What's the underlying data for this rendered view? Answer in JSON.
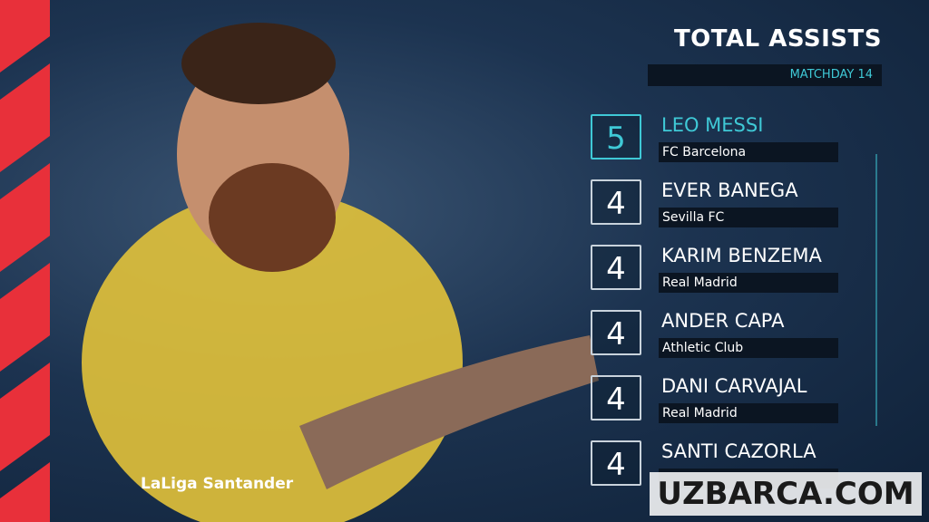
{
  "header": {
    "title": "TOTAL ASSISTS",
    "subtitle": "MATCHDAY 14"
  },
  "players": [
    {
      "assists": 5,
      "name": "LEO MESSI",
      "club": "FC Barcelona"
    },
    {
      "assists": 4,
      "name": "EVER BANEGA",
      "club": "Sevilla FC"
    },
    {
      "assists": 4,
      "name": "KARIM BENZEMA",
      "club": "Real Madrid"
    },
    {
      "assists": 4,
      "name": "ANDER CAPA",
      "club": "Athletic Club"
    },
    {
      "assists": 4,
      "name": "DANI CARVAJAL",
      "club": "Real Madrid"
    },
    {
      "assists": 4,
      "name": "SANTI CAZORLA"
    }
  ],
  "logo": "LaLiga Santander",
  "watermark": "UZBARCA.COM"
}
